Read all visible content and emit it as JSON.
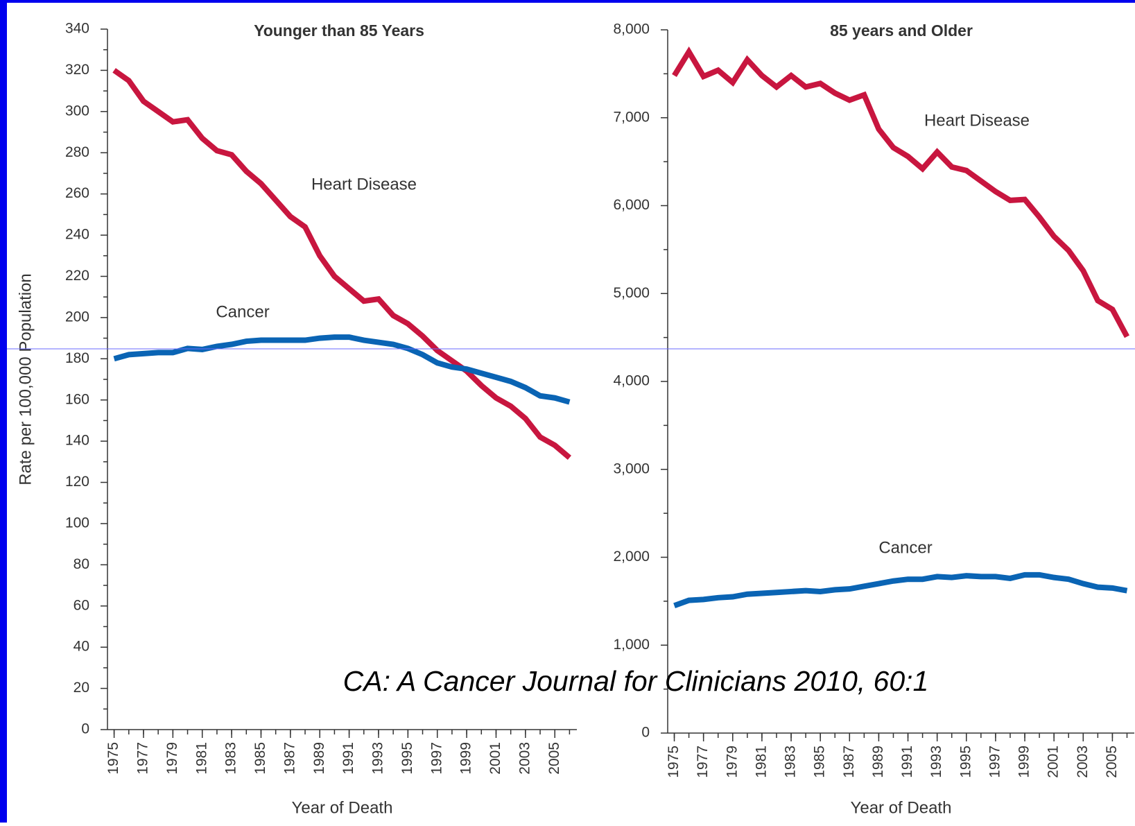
{
  "chart_data": [
    {
      "type": "line",
      "title": "Younger than 85 Years",
      "ylabel": "Rate per 100,000 Population",
      "xlabel": "Year of Death",
      "x": [
        1975,
        1976,
        1977,
        1978,
        1979,
        1980,
        1981,
        1982,
        1983,
        1984,
        1985,
        1986,
        1987,
        1988,
        1989,
        1990,
        1991,
        1992,
        1993,
        1994,
        1995,
        1996,
        1997,
        1998,
        1999,
        2000,
        2001,
        2002,
        2003,
        2004,
        2005,
        2006
      ],
      "xlim": [
        1974.5,
        2006.5
      ],
      "xticks": [
        1975,
        1977,
        1979,
        1981,
        1983,
        1985,
        1987,
        1989,
        1991,
        1993,
        1995,
        1997,
        1999,
        2001,
        2003,
        2005
      ],
      "ylim": [
        0,
        340
      ],
      "yticks": [
        0,
        20,
        40,
        60,
        80,
        100,
        120,
        140,
        160,
        180,
        200,
        220,
        240,
        260,
        280,
        300,
        320,
        340
      ],
      "series": [
        {
          "name": "Heart Disease",
          "color": "#c8163f",
          "values": [
            320,
            315,
            305,
            300,
            295,
            296,
            287,
            281,
            279,
            271,
            265,
            257,
            249,
            244,
            230,
            220,
            214,
            208,
            209,
            201,
            197,
            191,
            184,
            179,
            174,
            167,
            161,
            157,
            151,
            142,
            138,
            132
          ]
        },
        {
          "name": "Cancer",
          "color": "#0a64b4",
          "values": [
            180,
            182,
            182.5,
            183,
            183,
            185,
            184.5,
            186,
            187,
            188.5,
            189,
            189,
            189,
            189,
            190,
            190.5,
            190.5,
            189,
            188,
            187,
            185,
            182,
            178,
            176,
            175,
            173,
            171,
            169,
            166,
            162,
            161,
            159
          ]
        }
      ]
    },
    {
      "type": "line",
      "title": "85 years and Older",
      "xlabel": "Year of Death",
      "x": [
        1975,
        1976,
        1977,
        1978,
        1979,
        1980,
        1981,
        1982,
        1983,
        1984,
        1985,
        1986,
        1987,
        1988,
        1989,
        1990,
        1991,
        1992,
        1993,
        1994,
        1995,
        1996,
        1997,
        1998,
        1999,
        2000,
        2001,
        2002,
        2003,
        2004,
        2005,
        2006
      ],
      "xlim": [
        1974.5,
        2006.5
      ],
      "xticks": [
        1975,
        1977,
        1979,
        1981,
        1983,
        1985,
        1987,
        1989,
        1991,
        1993,
        1995,
        1997,
        1999,
        2001,
        2003,
        2005
      ],
      "ylim": [
        0,
        8000
      ],
      "yticks": [
        0,
        {
          "value": 1000,
          "label": "1,000"
        },
        {
          "value": 2000,
          "label": "2,000"
        },
        {
          "value": 3000,
          "label": "3,000"
        },
        {
          "value": 4000,
          "label": "4,000"
        },
        {
          "value": 5000,
          "label": "5,000"
        },
        {
          "value": 6000,
          "label": "6,000"
        },
        {
          "value": 7000,
          "label": "7,000"
        },
        {
          "value": 8000,
          "label": "8,000"
        }
      ],
      "series": [
        {
          "name": "Heart Disease",
          "color": "#c8163f",
          "values": [
            7480,
            7750,
            7470,
            7540,
            7400,
            7660,
            7480,
            7350,
            7480,
            7350,
            7390,
            7280,
            7200,
            7260,
            6870,
            6660,
            6560,
            6420,
            6610,
            6440,
            6400,
            6280,
            6160,
            6060,
            6070,
            5870,
            5650,
            5490,
            5260,
            4920,
            4820,
            4510
          ]
        },
        {
          "name": "Cancer",
          "color": "#0a64b4",
          "values": [
            1450,
            1510,
            1520,
            1540,
            1550,
            1580,
            1590,
            1600,
            1610,
            1620,
            1610,
            1630,
            1640,
            1670,
            1700,
            1730,
            1750,
            1750,
            1780,
            1770,
            1790,
            1780,
            1780,
            1760,
            1800,
            1800,
            1770,
            1750,
            1700,
            1660,
            1650,
            1620
          ]
        }
      ]
    }
  ],
  "citation": "CA: A Cancer Journal for Clinicians 2010, 60:1"
}
